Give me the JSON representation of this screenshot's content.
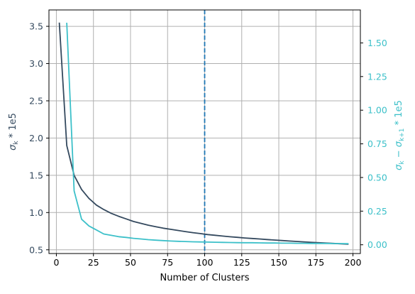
{
  "chart_data": {
    "type": "line",
    "title": "",
    "xlabel": "Number of Clusters",
    "ylabel_left": "σ_k * 1e5",
    "ylabel_right": "σ_k − σ_{k+1} * 1e5",
    "xlim": [
      -5,
      205
    ],
    "ylim_left": [
      0.45,
      3.72
    ],
    "ylim_right": [
      -0.065,
      1.745
    ],
    "x_ticks": [
      0,
      25,
      50,
      75,
      100,
      125,
      150,
      175,
      200
    ],
    "y_left_ticks": [
      0.5,
      1.0,
      1.5,
      2.0,
      2.5,
      3.0,
      3.5
    ],
    "y_right_ticks": [
      0.0,
      0.25,
      0.5,
      0.75,
      1.0,
      1.25,
      1.5
    ],
    "grid": true,
    "vline": {
      "x": 100,
      "color": "#1f77b4",
      "style": "dashed"
    },
    "colors": {
      "left_axis": "#34495e",
      "right_axis": "#3cc0c9"
    },
    "series": [
      {
        "axis": "left",
        "color": "#34495e",
        "x": [
          2,
          7,
          12,
          17,
          22,
          27,
          32,
          37,
          42,
          47,
          52,
          57,
          62,
          67,
          72,
          77,
          82,
          87,
          92,
          97,
          102,
          107,
          112,
          117,
          122,
          127,
          132,
          137,
          142,
          147,
          152,
          157,
          162,
          167,
          172,
          177,
          182,
          187,
          192,
          197
        ],
        "values": [
          3.55,
          1.9,
          1.5,
          1.31,
          1.19,
          1.1,
          1.04,
          0.99,
          0.95,
          0.915,
          0.88,
          0.855,
          0.83,
          0.81,
          0.79,
          0.775,
          0.76,
          0.745,
          0.73,
          0.718,
          0.705,
          0.695,
          0.685,
          0.675,
          0.667,
          0.659,
          0.652,
          0.645,
          0.638,
          0.631,
          0.624,
          0.618,
          0.612,
          0.606,
          0.6,
          0.595,
          0.59,
          0.585,
          0.58,
          0.575
        ]
      },
      {
        "axis": "right",
        "color": "#3cc0c9",
        "x": [
          7,
          12,
          17,
          22,
          27,
          32,
          37,
          42,
          47,
          52,
          57,
          62,
          67,
          72,
          77,
          82,
          87,
          92,
          97,
          102,
          107,
          112,
          117,
          122,
          127,
          132,
          137,
          142,
          147,
          152,
          157,
          162,
          167,
          172,
          177,
          182,
          187,
          192,
          197
        ],
        "values": [
          1.65,
          0.4,
          0.19,
          0.14,
          0.11,
          0.08,
          0.07,
          0.06,
          0.055,
          0.048,
          0.043,
          0.038,
          0.034,
          0.031,
          0.028,
          0.026,
          0.024,
          0.022,
          0.021,
          0.02,
          0.019,
          0.018,
          0.017,
          0.016,
          0.015,
          0.015,
          0.014,
          0.013,
          0.013,
          0.012,
          0.012,
          0.011,
          0.011,
          0.01,
          0.01,
          0.01,
          0.009,
          0.009,
          0.008
        ]
      }
    ]
  }
}
